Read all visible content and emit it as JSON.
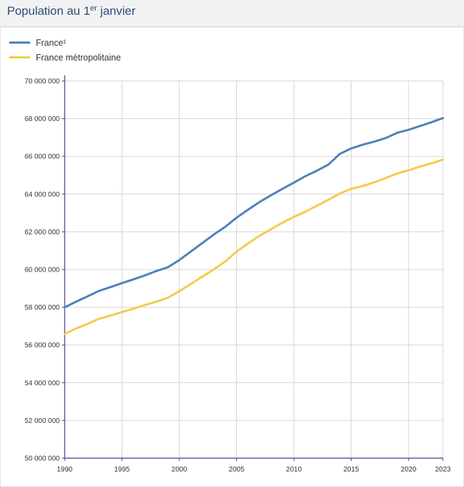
{
  "header": {
    "title_prefix": "Population au 1",
    "title_sup": "er",
    "title_suffix": " janvier"
  },
  "chart_data": {
    "type": "line",
    "title": "Population au 1er janvier",
    "xlabel": "",
    "ylabel": "",
    "xlim": [
      1990,
      2023
    ],
    "ylim": [
      50000000,
      70000000
    ],
    "x_ticks": [
      1990,
      1995,
      2000,
      2005,
      2010,
      2015,
      2020,
      2023
    ],
    "y_ticks": [
      50000000,
      52000000,
      54000000,
      56000000,
      58000000,
      60000000,
      62000000,
      64000000,
      66000000,
      68000000,
      70000000
    ],
    "y_tick_labels": [
      "50 000 000",
      "52 000 000",
      "54 000 000",
      "56 000 000",
      "58 000 000",
      "60 000 000",
      "62 000 000",
      "64 000 000",
      "66 000 000",
      "68 000 000",
      "70 000 000"
    ],
    "grid": true,
    "legend_position": "top-left",
    "x": [
      1990,
      1991,
      1992,
      1993,
      1994,
      1995,
      1996,
      1997,
      1998,
      1999,
      2000,
      2001,
      2002,
      2003,
      2004,
      2005,
      2006,
      2007,
      2008,
      2009,
      2010,
      2011,
      2012,
      2013,
      2014,
      2015,
      2016,
      2017,
      2018,
      2019,
      2020,
      2021,
      2022,
      2023
    ],
    "series": [
      {
        "name": "France¹",
        "color": "#4f81bd",
        "values": [
          58000000,
          58300000,
          58580000,
          58870000,
          59070000,
          59280000,
          59480000,
          59690000,
          59920000,
          60120000,
          60500000,
          60950000,
          61400000,
          61850000,
          62260000,
          62750000,
          63170000,
          63580000,
          63940000,
          64280000,
          64610000,
          64950000,
          65240000,
          65560000,
          66130000,
          66420000,
          66620000,
          66780000,
          66970000,
          67250000,
          67410000,
          67610000,
          67810000,
          68030000
        ]
      },
      {
        "name": "France métropolitaine",
        "color": "#f1cd4a",
        "values": [
          56580000,
          56880000,
          57120000,
          57390000,
          57560000,
          57750000,
          57920000,
          58120000,
          58300000,
          58500000,
          58850000,
          59230000,
          59620000,
          60000000,
          60420000,
          60950000,
          61380000,
          61790000,
          62140000,
          62480000,
          62790000,
          63070000,
          63380000,
          63700000,
          64030000,
          64280000,
          64430000,
          64620000,
          64850000,
          65090000,
          65260000,
          65460000,
          65630000,
          65830000
        ]
      }
    ]
  }
}
